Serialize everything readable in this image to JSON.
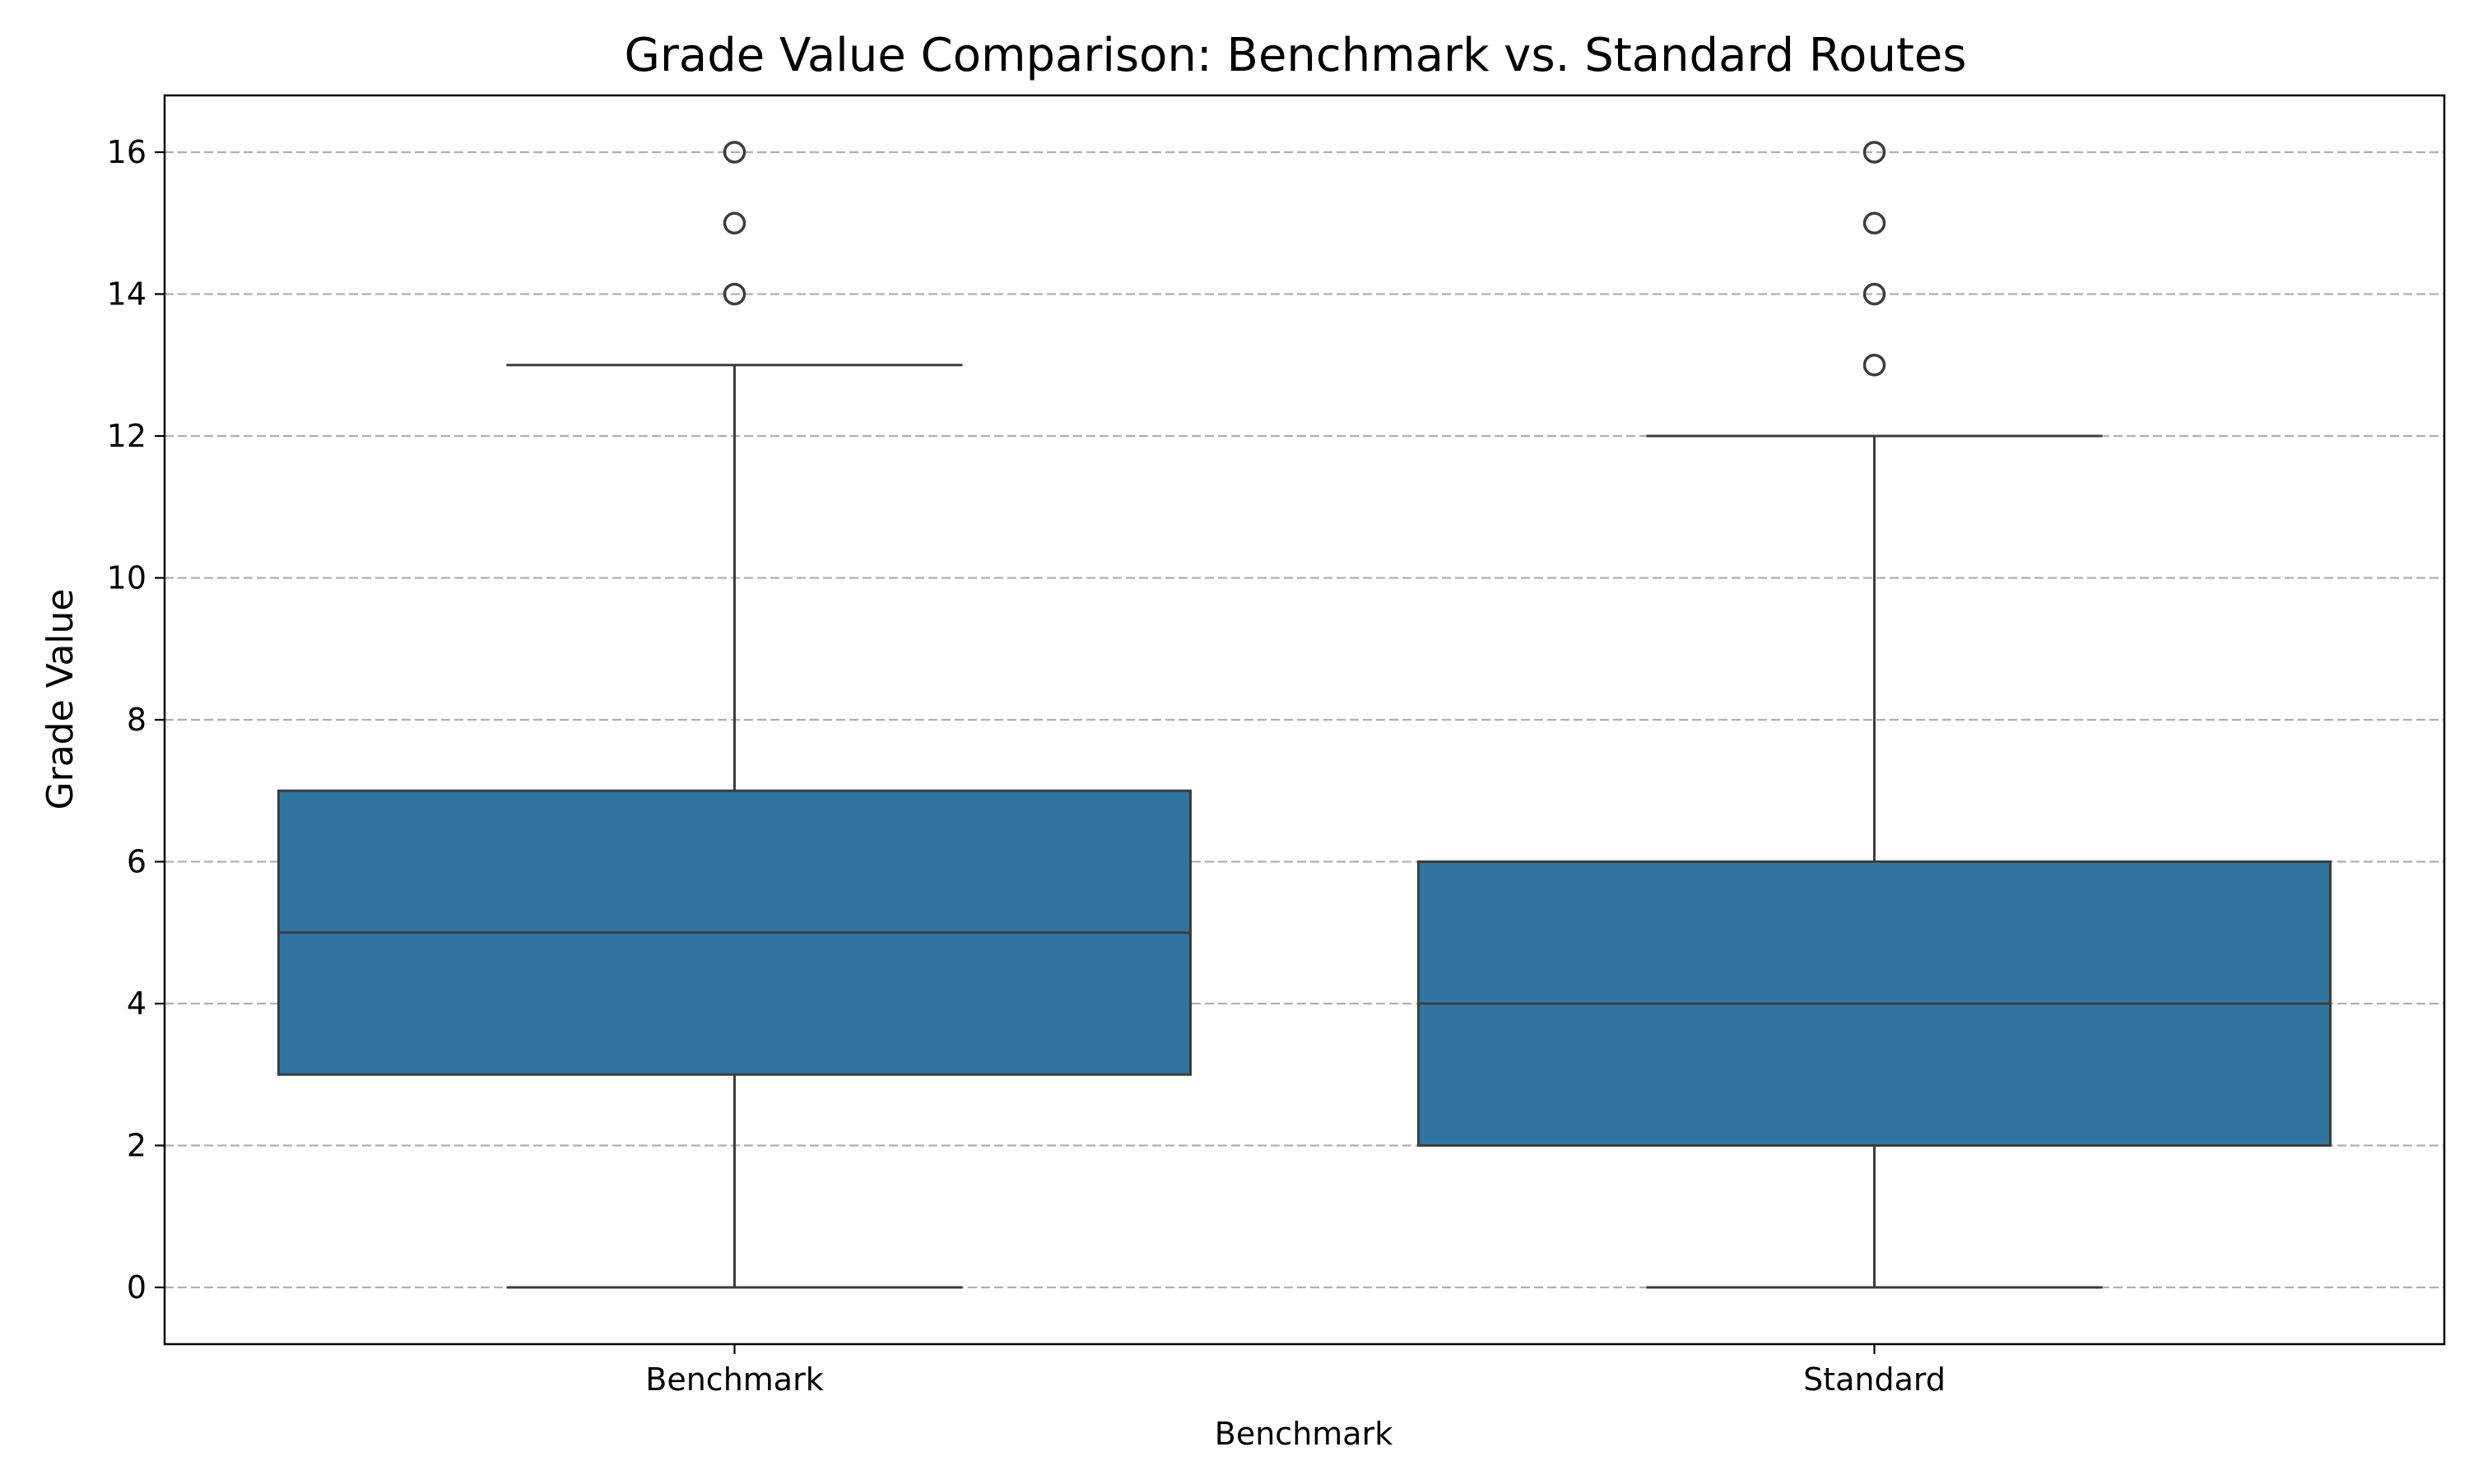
{
  "chart_data": {
    "type": "box",
    "title": "Grade Value Comparison: Benchmark vs. Standard Routes",
    "xlabel": "Benchmark",
    "ylabel": "Grade Value",
    "categories": [
      "Benchmark",
      "Standard"
    ],
    "ylim": [
      -0.8,
      16.8
    ],
    "yticks": [
      0,
      2,
      4,
      6,
      8,
      10,
      12,
      14,
      16
    ],
    "grid": "y-dashed",
    "box_color": "#3274a1",
    "line_color": "#3d3d3d",
    "grid_color": "#b0b0b0",
    "series": [
      {
        "category": "Benchmark",
        "whisker_low": 0,
        "q1": 3,
        "median": 5,
        "q3": 7,
        "whisker_high": 13,
        "outliers": [
          14,
          15,
          16
        ]
      },
      {
        "category": "Standard",
        "whisker_low": 0,
        "q1": 2,
        "median": 4,
        "q3": 6,
        "whisker_high": 12,
        "outliers": [
          13,
          14,
          15,
          16
        ]
      }
    ]
  }
}
